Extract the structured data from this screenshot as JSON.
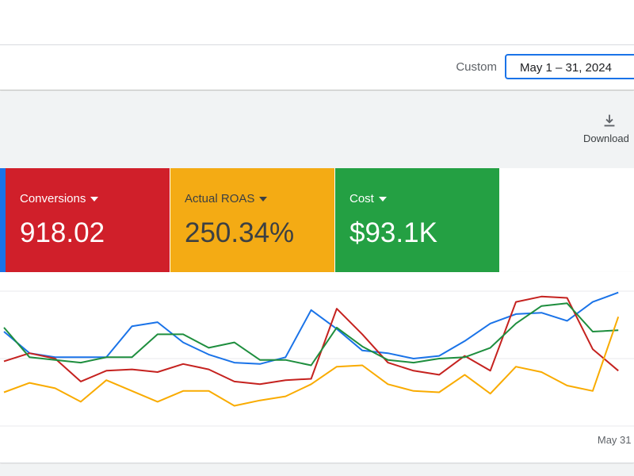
{
  "header": {
    "range_label": "Custom",
    "date_range": "May 1 – 31, 2024"
  },
  "toolbar": {
    "download": "Download"
  },
  "cards": [
    {
      "label": "Conversions",
      "value": "918.02",
      "color": "#d01f2a"
    },
    {
      "label": "Actual ROAS",
      "value": "250.34%",
      "color": "#f4ab14"
    },
    {
      "label": "Cost",
      "value": "$93.1K",
      "color": "#24a043"
    }
  ],
  "chart_data": {
    "type": "line",
    "categories": [
      null,
      null,
      null,
      null,
      null,
      null,
      null,
      null,
      null,
      null,
      null,
      null,
      null,
      null,
      null,
      null,
      null,
      null,
      null,
      null,
      null,
      null,
      null,
      null,
      "May 31"
    ],
    "series": [
      {
        "color": "#1a73e8",
        "values": [
          70,
          54,
          51,
          51,
          51,
          74,
          77,
          62,
          53,
          47,
          46,
          51,
          86,
          72,
          56,
          54,
          50,
          52,
          63,
          76,
          83,
          84,
          78,
          92,
          99
        ]
      },
      {
        "color": "#c5221f",
        "values": [
          48,
          54,
          50,
          33,
          41,
          42,
          40,
          46,
          42,
          33,
          31,
          34,
          35,
          87,
          68,
          47,
          41,
          38,
          52,
          41,
          92,
          96,
          95,
          57,
          41
        ]
      },
      {
        "color": "#1e8e3e",
        "values": [
          73,
          51,
          49,
          47,
          51,
          51,
          68,
          68,
          58,
          62,
          49,
          49,
          45,
          73,
          59,
          49,
          47,
          50,
          51,
          58,
          76,
          89,
          91,
          70,
          71
        ]
      },
      {
        "color": "#f9ab00",
        "values": [
          25,
          32,
          28,
          18,
          34,
          26,
          18,
          26,
          26,
          15,
          19,
          22,
          31,
          44,
          45,
          31,
          26,
          25,
          38,
          24,
          44,
          40,
          30,
          26,
          81
        ]
      }
    ],
    "ylim": [
      0,
      100
    ]
  }
}
